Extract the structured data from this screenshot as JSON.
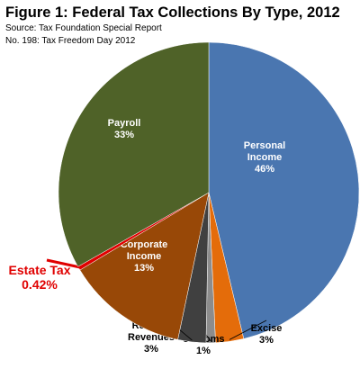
{
  "chart_data": {
    "type": "pie",
    "title": "Figure 1: Federal Tax Collections By Type, 2012",
    "source": [
      "Source: Tax Foundation Special Report",
      "No. 198: Tax Freedom Day 2012"
    ],
    "categories": [
      "Personal Income",
      "Excise",
      "Customs",
      "Federal Reserve Revenues",
      "Corporate Income",
      "Estate Tax",
      "Payroll"
    ],
    "values": [
      46,
      3,
      1,
      3,
      13,
      0.42,
      33
    ],
    "value_labels": [
      "46%",
      "3%",
      "1%",
      "3%",
      "13%",
      "0.42%",
      "33%"
    ],
    "colors": [
      "#4a76b0",
      "#e46c0a",
      "#8c8c8c",
      "#404040",
      "#984807",
      "#e00000",
      "#4f6228"
    ]
  }
}
